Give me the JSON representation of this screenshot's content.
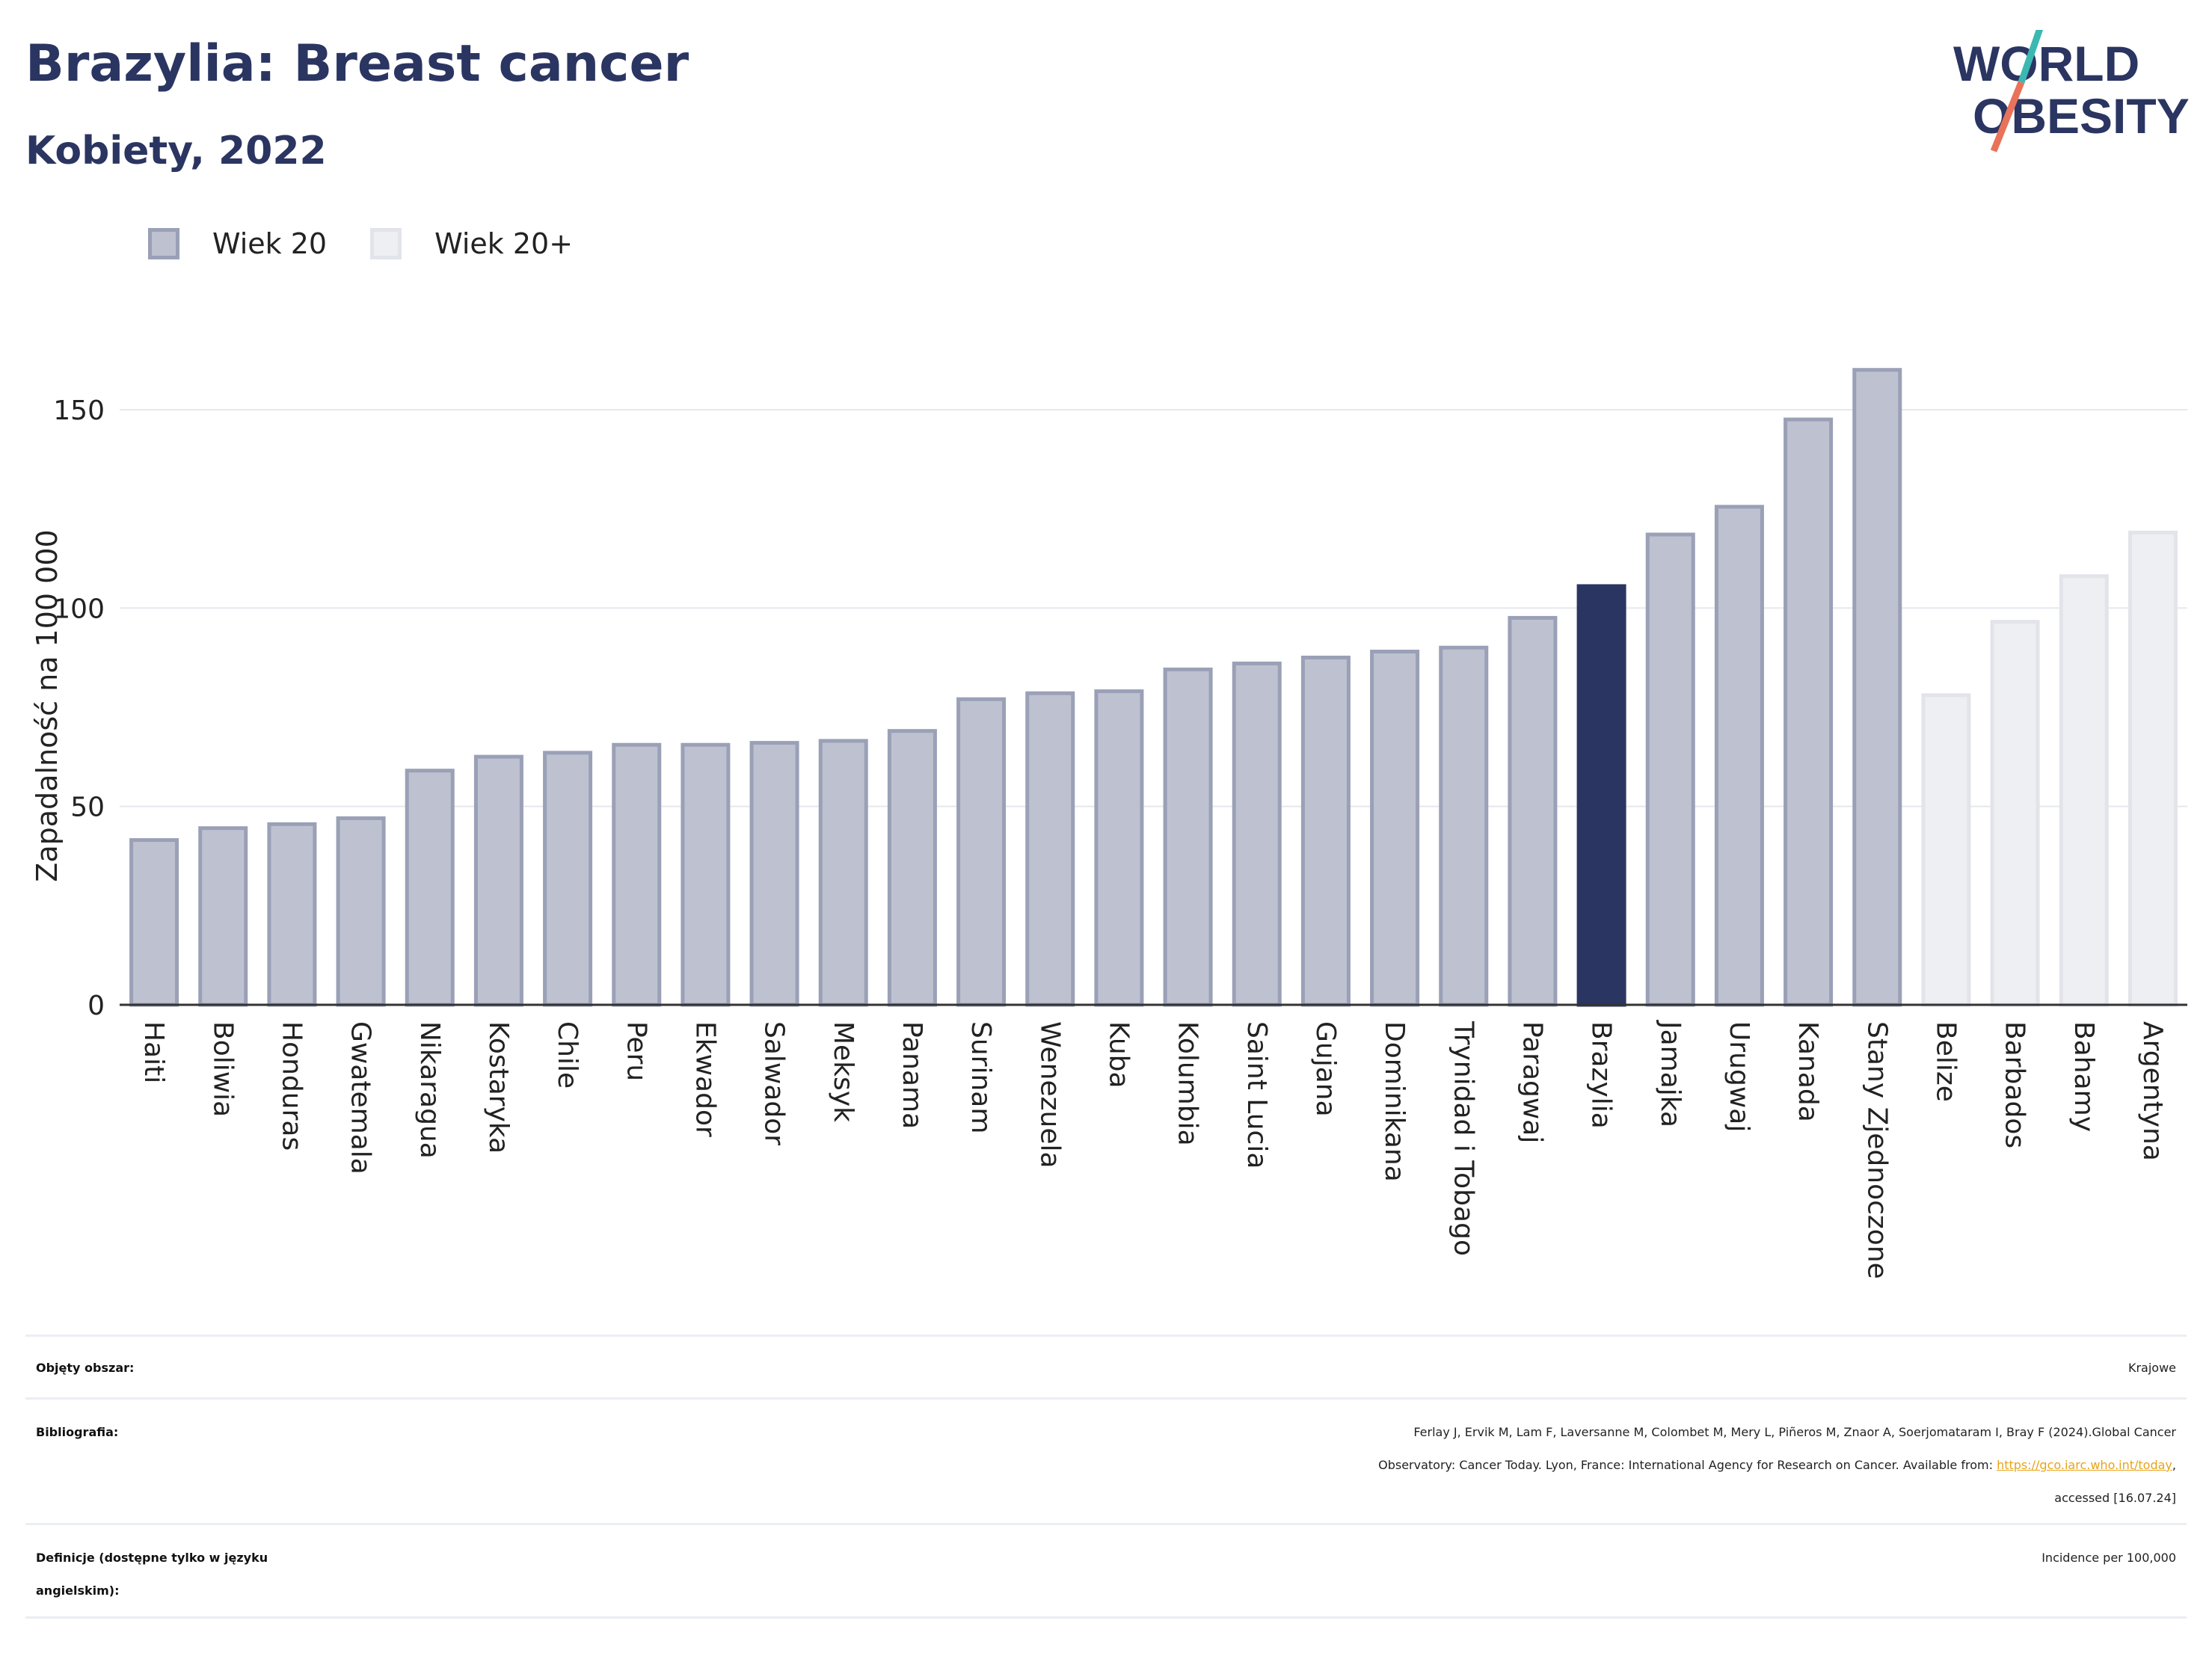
{
  "title": "Brazylia: Breast cancer",
  "subtitle": "Kobiety, 2022",
  "logo": {
    "line1": "WORLD",
    "line2": "OBESITY"
  },
  "legend": [
    {
      "label": "Wiek 20",
      "color": "#bec2d0"
    },
    {
      "label": "Wiek 20+",
      "color": "#eeeff3"
    }
  ],
  "colors": {
    "series_a": "#bec2d0",
    "series_a_border": "#9aa0b6",
    "series_b": "#eeeff3",
    "series_b_border": "#e2e4ea",
    "highlight": "#2b3561",
    "brand": "#2b3561",
    "logo_teal": "#3cb8b2",
    "logo_coral": "#e8735a"
  },
  "chart_data": {
    "type": "bar",
    "ylabel": "Zapadalność na 100 000",
    "ylim": [
      0,
      170
    ],
    "yticks": [
      0,
      50,
      100,
      150
    ],
    "grid": true,
    "legend_position": "top-left",
    "highlight": "Brazylia",
    "categories": [
      "Haiti",
      "Boliwia",
      "Honduras",
      "Gwatemala",
      "Nikaragua",
      "Kostaryka",
      "Chile",
      "Peru",
      "Ekwador",
      "Salwador",
      "Meksyk",
      "Panama",
      "Surinam",
      "Wenezuela",
      "Kuba",
      "Kolumbia",
      "Saint Lucia",
      "Gujana",
      "Dominikana",
      "Trynidad i Tobago",
      "Paragwaj",
      "Brazylia",
      "Jamajka",
      "Urugwaj",
      "Kanada",
      "Stany Zjednoczone",
      "Belize",
      "Barbados",
      "Bahamy",
      "Argentyna"
    ],
    "values": [
      42,
      45,
      46,
      47.5,
      59.5,
      63,
      64,
      66,
      66,
      66.5,
      67,
      69.5,
      77.5,
      79,
      79.5,
      85,
      86.5,
      88,
      89.5,
      90.5,
      98,
      106,
      119,
      126,
      148,
      160.5,
      78.5,
      97,
      108.5,
      119.5
    ],
    "series_index": [
      0,
      0,
      0,
      0,
      0,
      0,
      0,
      0,
      0,
      0,
      0,
      0,
      0,
      0,
      0,
      0,
      0,
      0,
      0,
      0,
      0,
      0,
      0,
      0,
      0,
      0,
      1,
      1,
      1,
      1
    ]
  },
  "meta": [
    {
      "label": "Objęty obszar:",
      "value": "Krajowe"
    },
    {
      "label": "Bibliografia:",
      "value_line1": "Ferlay J, Ervik M, Lam F, Laversanne M, Colombet M, Mery L, Piñeros M, Znaor A, Soerjomataram I, Bray F (2024).Global Cancer",
      "value_line2_pre": "Observatory: Cancer Today. Lyon, France: International Agency for Research on Cancer. Available from: ",
      "value_link": "https://gco.iarc.who.int/today",
      "value_line2_post": ",",
      "value_line3": "accessed [16.07.24]"
    },
    {
      "label_line1": "Definicje (dostępne tylko w języku",
      "label_line2": "angielskim):",
      "value": "Incidence per 100,000"
    }
  ]
}
